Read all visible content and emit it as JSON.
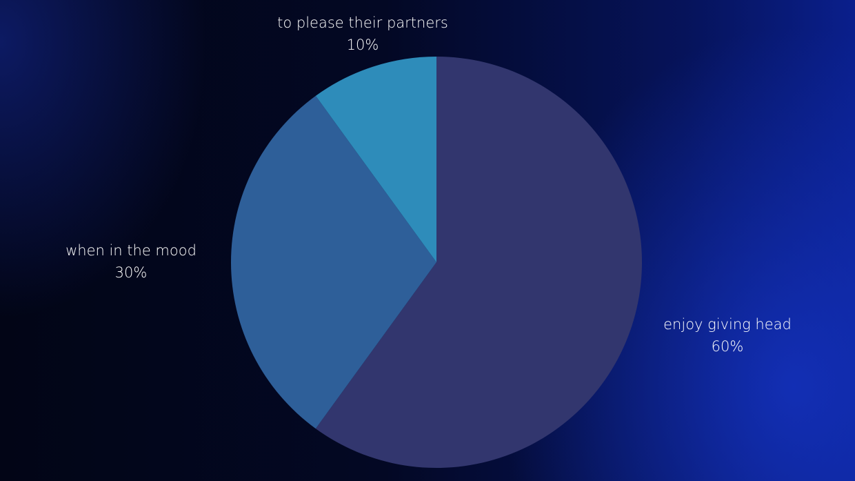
{
  "chart_data": {
    "type": "pie",
    "categories": [
      "enjoy giving head",
      "when in the mood",
      "to please their partners"
    ],
    "values": [
      60,
      30,
      10
    ],
    "value_labels": [
      "60%",
      "30%",
      "10%"
    ],
    "colors": [
      "#32366e",
      "#2e5f99",
      "#2e8cba"
    ]
  }
}
